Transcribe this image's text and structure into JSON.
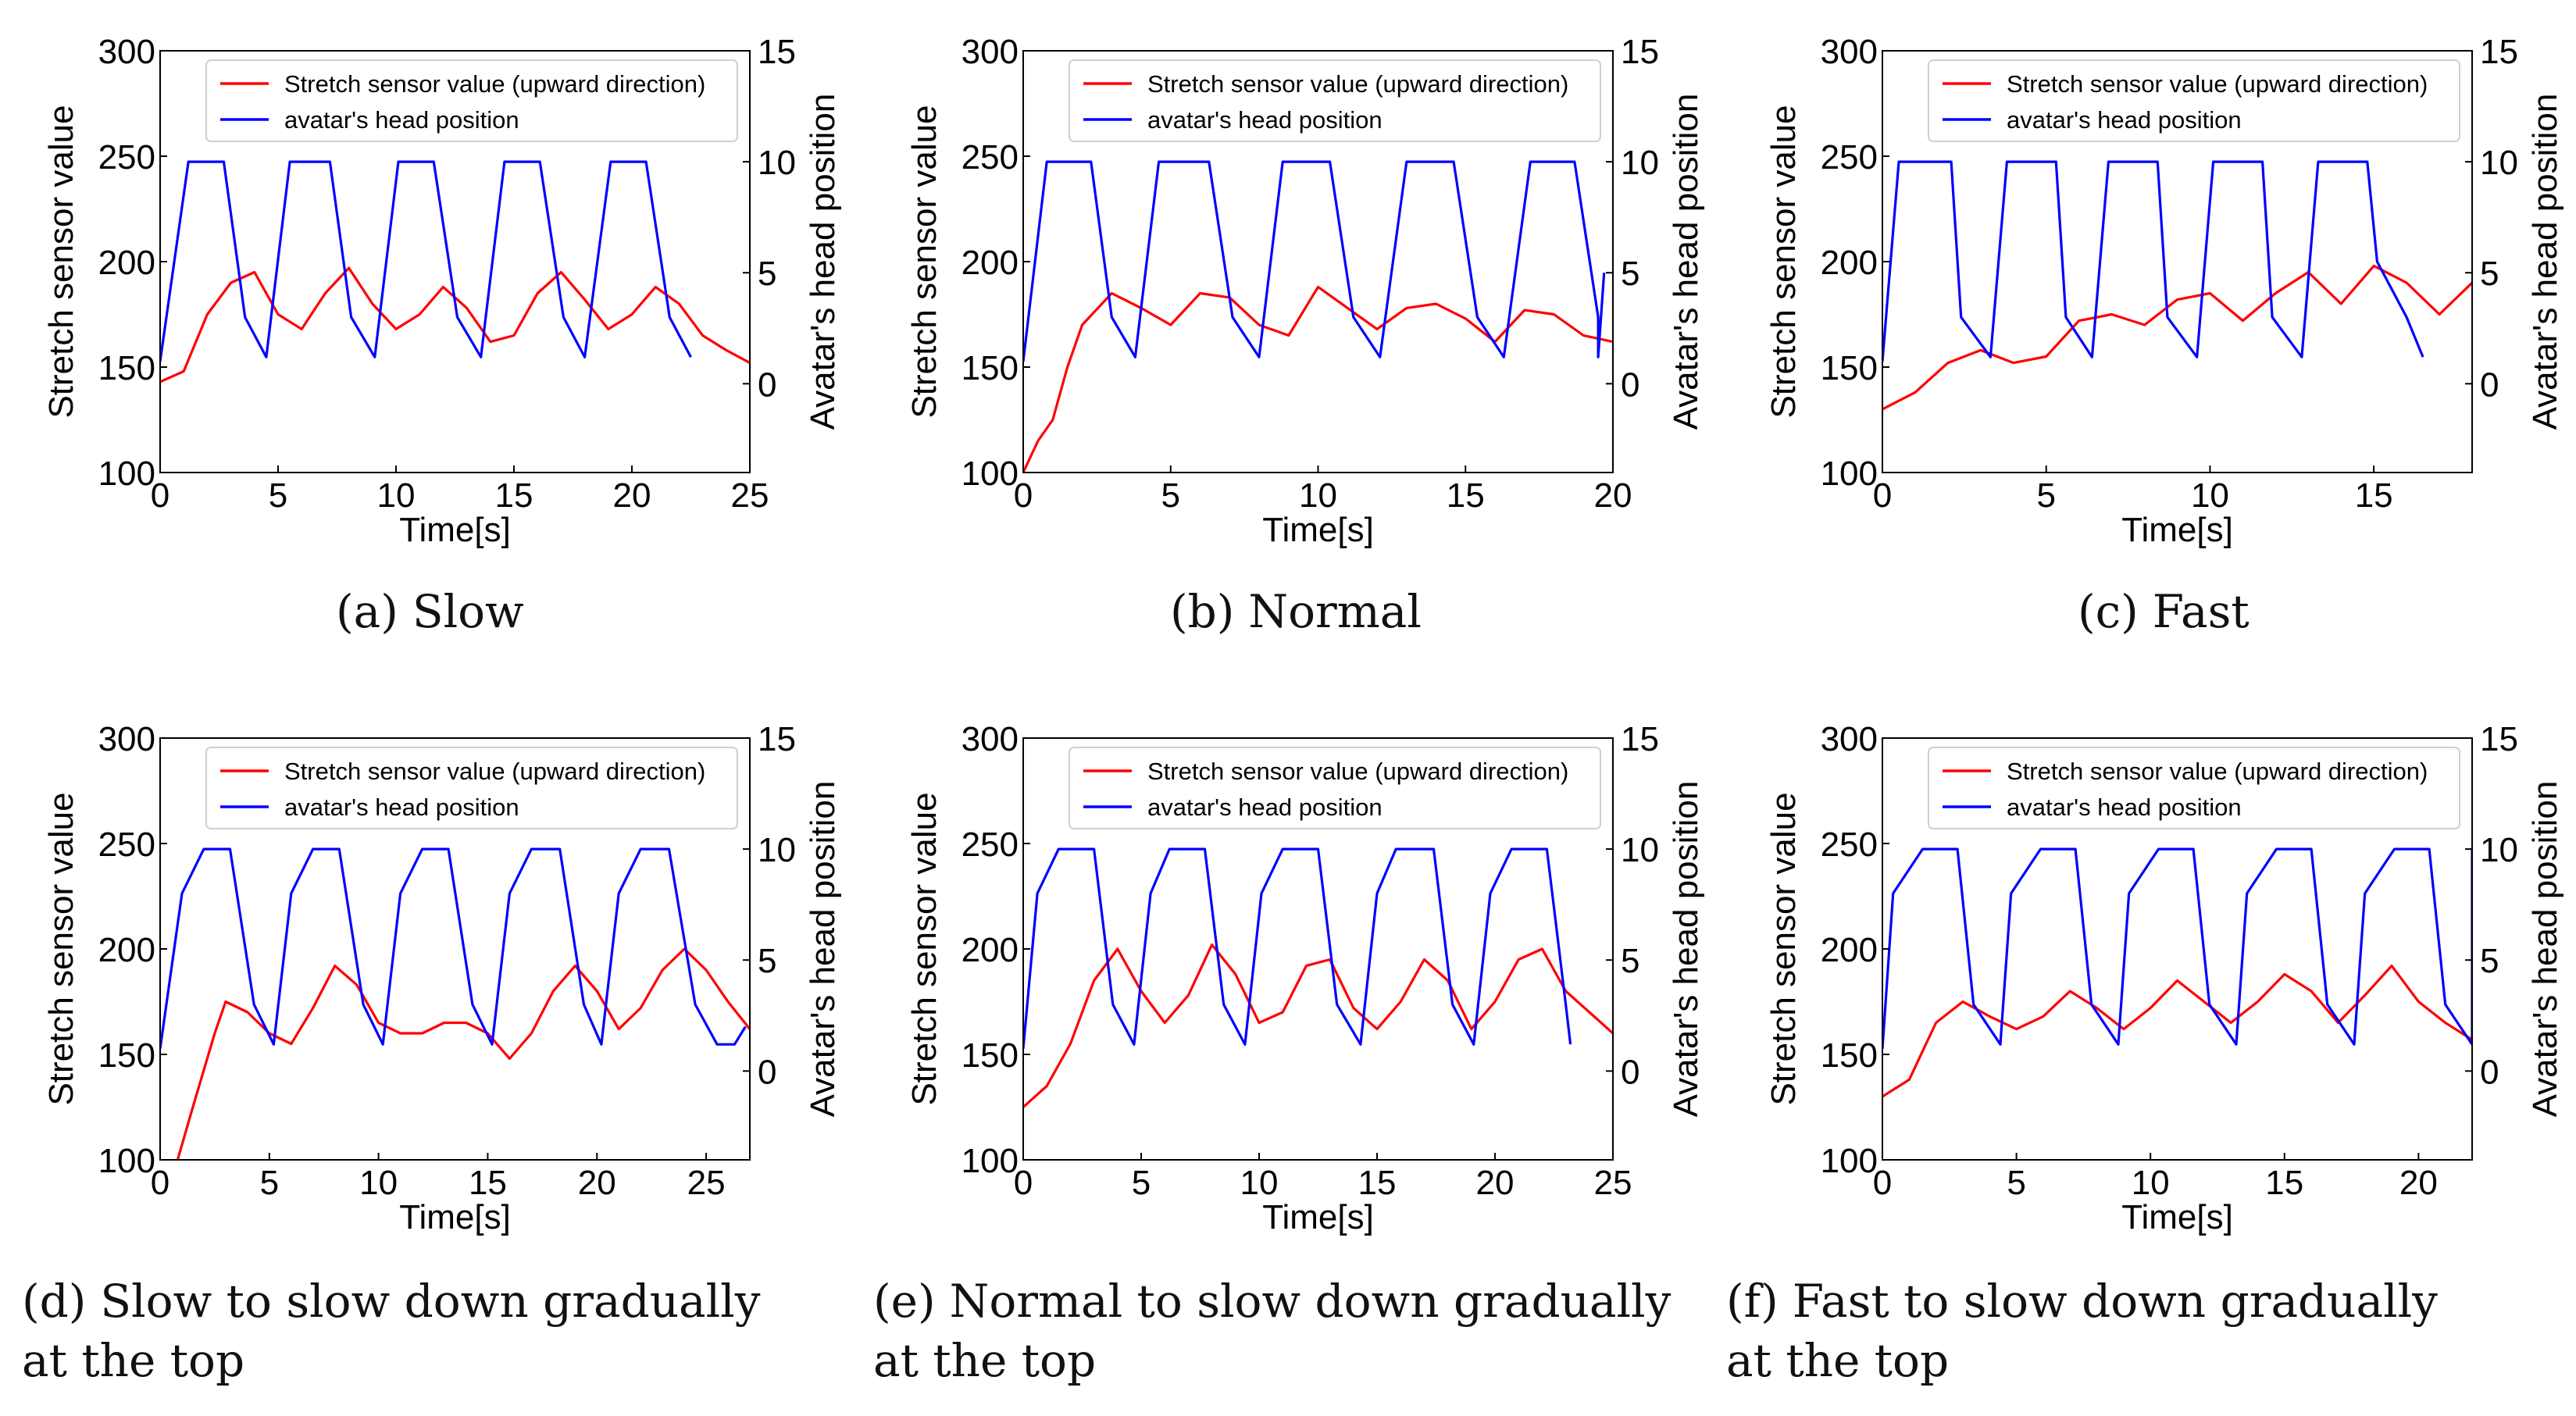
{
  "chart_data": [
    {
      "type": "line",
      "title": "",
      "caption_label": "(a)",
      "caption_text": "Slow",
      "xlabel": "Time[s]",
      "ylabel": "Stretch sensor value",
      "ylabel_right": "Avatar's head position",
      "xlim": [
        0,
        25
      ],
      "ylim": [
        100,
        300
      ],
      "ylim_right": [
        -4,
        15
      ],
      "xticks": [
        0,
        5,
        10,
        15,
        20,
        25
      ],
      "yticks": [
        100,
        150,
        200,
        250,
        300
      ],
      "yticks_right": [
        0,
        5,
        10,
        15
      ],
      "legend_position": "top-right",
      "series": [
        {
          "name": "Stretch sensor value (upward direction)",
          "axis": "left",
          "color": "#ff0000",
          "x": [
            0,
            1,
            2,
            3,
            4,
            5,
            6,
            7,
            8,
            9,
            10,
            11,
            12,
            13,
            14,
            15,
            16,
            17,
            18,
            19,
            20,
            21,
            22,
            23,
            24,
            25
          ],
          "y": [
            143,
            148,
            175,
            190,
            195,
            175,
            168,
            185,
            197,
            180,
            168,
            175,
            188,
            178,
            162,
            165,
            185,
            195,
            182,
            168,
            175,
            188,
            180,
            165,
            158,
            152
          ]
        },
        {
          "name": "avatar's head position",
          "axis": "right",
          "color": "#0000ff",
          "x": [
            0,
            1.2,
            2.7,
            3.6,
            4.5,
            5.5,
            7.2,
            8.1,
            9.1,
            10.1,
            11.6,
            12.6,
            13.6,
            14.6,
            16.1,
            17.1,
            18.0,
            19.1,
            20.6,
            21.6,
            22.5
          ],
          "y": [
            1,
            10,
            10,
            3,
            1.2,
            10,
            10,
            3,
            1.2,
            10,
            10,
            3,
            1.2,
            10,
            10,
            3,
            1.2,
            10,
            10,
            3,
            1.2
          ]
        }
      ]
    },
    {
      "type": "line",
      "title": "",
      "caption_label": "(b)",
      "caption_text": "Normal",
      "xlabel": "Time[s]",
      "ylabel": "Stretch sensor value",
      "ylabel_right": "Avatar's head position",
      "xlim": [
        0,
        20
      ],
      "ylim": [
        100,
        300
      ],
      "ylim_right": [
        -4,
        15
      ],
      "xticks": [
        0,
        5,
        10,
        15,
        20
      ],
      "yticks": [
        100,
        150,
        200,
        250,
        300
      ],
      "yticks_right": [
        0,
        5,
        10,
        15
      ],
      "legend_position": "top-right",
      "series": [
        {
          "name": "Stretch sensor value (upward direction)",
          "axis": "left",
          "color": "#ff0000",
          "x": [
            0,
            0.5,
            1,
            1.5,
            2,
            3,
            4,
            5,
            6,
            7,
            8,
            9,
            10,
            11,
            12,
            13,
            14,
            15,
            16,
            17,
            18,
            19,
            20
          ],
          "y": [
            100,
            115,
            125,
            150,
            170,
            185,
            178,
            170,
            185,
            183,
            170,
            165,
            188,
            178,
            168,
            178,
            180,
            173,
            162,
            177,
            175,
            165,
            162
          ]
        },
        {
          "name": "avatar's head position",
          "axis": "right",
          "color": "#0000ff",
          "x": [
            0,
            0.8,
            2.3,
            3.0,
            3.8,
            4.6,
            6.3,
            7.1,
            8.0,
            8.8,
            10.4,
            11.2,
            12.1,
            13.0,
            14.6,
            15.4,
            16.3,
            17.2,
            18.7,
            19.5,
            19.5,
            19.7
          ],
          "y": [
            1,
            10,
            10,
            3,
            1.2,
            10,
            10,
            3,
            1.2,
            10,
            10,
            3,
            1.2,
            10,
            10,
            3,
            1.2,
            10,
            10,
            3,
            1.2,
            5
          ]
        }
      ]
    },
    {
      "type": "line",
      "title": "",
      "caption_label": "(c)",
      "caption_text": "Fast",
      "xlabel": "Time[s]",
      "ylabel": "Stretch sensor value",
      "ylabel_right": "Avatar's head position",
      "xlim": [
        0,
        18
      ],
      "ylim": [
        100,
        300
      ],
      "ylim_right": [
        -4,
        15
      ],
      "xticks": [
        0,
        5,
        10,
        15
      ],
      "yticks": [
        100,
        150,
        200,
        250,
        300
      ],
      "yticks_right": [
        0,
        5,
        10,
        15
      ],
      "legend_position": "top-right",
      "series": [
        {
          "name": "Stretch sensor value (upward direction)",
          "axis": "left",
          "color": "#ff0000",
          "x": [
            0,
            1,
            2,
            3,
            4,
            5,
            6,
            7,
            8,
            9,
            10,
            11,
            12,
            13,
            14,
            15,
            16,
            17,
            18
          ],
          "y": [
            130,
            138,
            152,
            158,
            152,
            155,
            172,
            175,
            170,
            182,
            185,
            172,
            185,
            195,
            180,
            198,
            190,
            175,
            190
          ]
        },
        {
          "name": "avatar's head position",
          "axis": "right",
          "color": "#0000ff",
          "x": [
            0,
            0.5,
            2.1,
            2.4,
            3.3,
            3.8,
            5.3,
            5.6,
            6.4,
            6.9,
            8.4,
            8.7,
            9.6,
            10.1,
            11.6,
            11.9,
            12.8,
            13.3,
            14.8,
            15.1,
            16.0,
            16.5
          ],
          "y": [
            1,
            10,
            10,
            3,
            1.2,
            10,
            10,
            3,
            1.2,
            10,
            10,
            3,
            1.2,
            10,
            10,
            3,
            1.2,
            10,
            10,
            5.5,
            3,
            1.2
          ]
        }
      ]
    },
    {
      "type": "line",
      "title": "",
      "caption_label": "(d)",
      "caption_text": "Slow to slow down gradually at the top",
      "caption_line1": "Slow to slow down gradually",
      "caption_line2": "at the top",
      "xlabel": "Time[s]",
      "ylabel": "Stretch sensor value",
      "ylabel_right": "Avatar's head position",
      "xlim": [
        0,
        27
      ],
      "ylim": [
        100,
        300
      ],
      "ylim_right": [
        -4,
        15
      ],
      "xticks": [
        0,
        5,
        10,
        15,
        20,
        25
      ],
      "yticks": [
        100,
        150,
        200,
        250,
        300
      ],
      "yticks_right": [
        0,
        5,
        10,
        15
      ],
      "legend_position": "top-right",
      "series": [
        {
          "name": "Stretch sensor value (upward direction)",
          "axis": "left",
          "color": "#ff0000",
          "x": [
            0.8,
            1.5,
            2.5,
            3,
            4,
            5,
            6,
            7,
            8,
            9,
            10,
            11,
            12,
            13,
            14,
            15,
            16,
            17,
            18,
            19,
            20,
            21,
            22,
            23,
            24,
            25,
            26,
            27
          ],
          "y": [
            100,
            125,
            160,
            175,
            170,
            160,
            155,
            172,
            192,
            183,
            165,
            160,
            160,
            165,
            165,
            160,
            148,
            160,
            180,
            192,
            180,
            162,
            172,
            190,
            200,
            190,
            175,
            162
          ]
        },
        {
          "name": "avatar's head position",
          "axis": "right",
          "color": "#0000ff",
          "x": [
            0,
            1,
            2,
            3.2,
            4.3,
            5.2,
            6,
            7,
            8.2,
            9.3,
            10.2,
            11,
            12,
            13.2,
            14.3,
            15.2,
            16,
            17,
            18.3,
            19.4,
            20.2,
            21,
            22,
            23.3,
            24.5,
            25.5,
            26.3,
            26.8
          ],
          "y": [
            1,
            8,
            10,
            10,
            3,
            1.2,
            8,
            10,
            10,
            3,
            1.2,
            8,
            10,
            10,
            3,
            1.2,
            8,
            10,
            10,
            3,
            1.2,
            8,
            10,
            10,
            3,
            1.2,
            1.2,
            2
          ]
        }
      ]
    },
    {
      "type": "line",
      "title": "",
      "caption_label": "(e)",
      "caption_text": "Normal to slow down gradually at the top",
      "caption_line1": "Normal to slow down gradually",
      "caption_line2": "at the top",
      "xlabel": "Time[s]",
      "ylabel": "Stretch sensor value",
      "ylabel_right": "Avatar's head position",
      "xlim": [
        0,
        25
      ],
      "ylim": [
        100,
        300
      ],
      "ylim_right": [
        -4,
        15
      ],
      "xticks": [
        0,
        5,
        10,
        15,
        20,
        25
      ],
      "yticks": [
        100,
        150,
        200,
        250,
        300
      ],
      "yticks_right": [
        0,
        5,
        10,
        15
      ],
      "legend_position": "top-right",
      "series": [
        {
          "name": "Stretch sensor value (upward direction)",
          "axis": "left",
          "color": "#ff0000",
          "x": [
            0,
            1,
            2,
            3,
            4,
            5,
            6,
            7,
            8,
            9,
            10,
            11,
            12,
            13,
            14,
            15,
            16,
            17,
            18,
            19,
            20,
            21,
            22,
            23,
            24,
            25
          ],
          "y": [
            125,
            135,
            155,
            185,
            200,
            180,
            165,
            178,
            202,
            188,
            165,
            170,
            192,
            195,
            172,
            162,
            175,
            195,
            185,
            162,
            175,
            195,
            200,
            180,
            170,
            160
          ]
        },
        {
          "name": "avatar's head position",
          "axis": "right",
          "color": "#0000ff",
          "x": [
            0,
            0.6,
            1.5,
            3.0,
            3.8,
            4.7,
            5.4,
            6.2,
            7.7,
            8.5,
            9.4,
            10.1,
            11,
            12.5,
            13.3,
            14.3,
            15,
            15.8,
            17.4,
            18.2,
            19.1,
            19.8,
            20.7,
            22.2,
            23,
            23.2
          ],
          "y": [
            1,
            8,
            10,
            10,
            3,
            1.2,
            8,
            10,
            10,
            3,
            1.2,
            8,
            10,
            10,
            3,
            1.2,
            8,
            10,
            10,
            3,
            1.2,
            8,
            10,
            10,
            3,
            1.2
          ]
        }
      ]
    },
    {
      "type": "line",
      "title": "",
      "caption_label": "(f)",
      "caption_text": "Fast to slow down gradually at the top",
      "caption_line1": "Fast to slow down gradually",
      "caption_line2": "at the top",
      "xlabel": "Time[s]",
      "ylabel": "Stretch sensor value",
      "ylabel_right": "Avatar's head position",
      "xlim": [
        0,
        22
      ],
      "ylim": [
        100,
        300
      ],
      "ylim_right": [
        -4,
        15
      ],
      "xticks": [
        0,
        5,
        10,
        15,
        20
      ],
      "yticks": [
        100,
        150,
        200,
        250,
        300
      ],
      "yticks_right": [
        0,
        5,
        10,
        15
      ],
      "legend_position": "top-right",
      "series": [
        {
          "name": "Stretch sensor value (upward direction)",
          "axis": "left",
          "color": "#ff0000",
          "x": [
            0,
            1,
            2,
            3,
            4,
            5,
            6,
            7,
            8,
            9,
            10,
            11,
            12,
            13,
            14,
            15,
            16,
            17,
            18,
            19,
            20,
            21,
            22
          ],
          "y": [
            130,
            138,
            165,
            175,
            168,
            162,
            168,
            180,
            172,
            162,
            172,
            185,
            175,
            165,
            175,
            188,
            180,
            165,
            178,
            192,
            175,
            165,
            157
          ]
        },
        {
          "name": "avatar's head position",
          "axis": "right",
          "color": "#0000ff",
          "x": [
            0,
            0.4,
            1.5,
            2.8,
            3.4,
            4.4,
            4.8,
            5.9,
            7.2,
            7.8,
            8.8,
            9.2,
            10.3,
            11.6,
            12.2,
            13.2,
            13.6,
            14.7,
            16,
            16.6,
            17.6,
            18,
            19.1,
            20.4,
            21,
            22,
            22
          ],
          "y": [
            1,
            8,
            10,
            10,
            3,
            1.2,
            8,
            10,
            10,
            3,
            1.2,
            8,
            10,
            10,
            3,
            1.2,
            8,
            10,
            10,
            3,
            1.2,
            8,
            10,
            10,
            3,
            1.2,
            10
          ]
        }
      ]
    }
  ]
}
